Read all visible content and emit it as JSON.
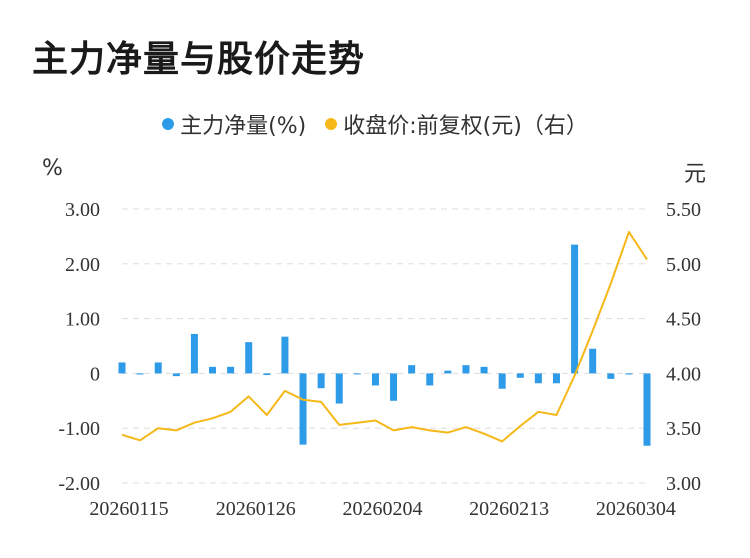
{
  "title": "主力净量与股价走势",
  "legend": {
    "main_net": "主力净量(%)",
    "close_price": "收盘价:前复权(元)（右）"
  },
  "colors": {
    "bar": "#2e9be8",
    "line": "#f5b818",
    "grid": "#dddddd"
  },
  "chart_data": {
    "type": "bar",
    "left_unit": "%",
    "right_unit": "元",
    "y_left_ticks": [
      "3.00",
      "2.00",
      "1.00",
      "0",
      "-1.00",
      "-2.00"
    ],
    "y_right_ticks": [
      "5.50",
      "5.00",
      "4.50",
      "4.00",
      "3.50",
      "3.00"
    ],
    "ylim_left": [
      -2,
      3
    ],
    "ylim_right": [
      3,
      5.5
    ],
    "x_tick_labels": [
      "20260115",
      "20260126",
      "20260204",
      "20260213",
      "20260304"
    ],
    "x_tick_indices": [
      0,
      7,
      14,
      21,
      28
    ],
    "series": [
      {
        "name": "主力净量(%)",
        "type": "bar",
        "axis": "left",
        "values": [
          0.2,
          -0.02,
          0.2,
          -0.05,
          0.72,
          0.12,
          0.12,
          0.57,
          -0.03,
          0.67,
          -1.3,
          -0.27,
          -0.55,
          -0.01,
          -0.22,
          -0.5,
          0.15,
          -0.22,
          0.05,
          0.15,
          0.12,
          -0.28,
          -0.08,
          -0.18,
          -0.18,
          2.35,
          0.45,
          -0.1,
          -0.02,
          -1.32
        ]
      },
      {
        "name": "收盘价:前复权(元)（右）",
        "type": "line",
        "axis": "right",
        "values": [
          3.44,
          3.39,
          3.5,
          3.48,
          3.55,
          3.59,
          3.65,
          3.79,
          3.62,
          3.84,
          3.76,
          3.74,
          3.53,
          3.55,
          3.57,
          3.48,
          3.51,
          3.48,
          3.46,
          3.51,
          3.45,
          3.38,
          3.52,
          3.65,
          3.62,
          3.98,
          4.39,
          4.82,
          5.29,
          5.04
        ]
      }
    ]
  }
}
